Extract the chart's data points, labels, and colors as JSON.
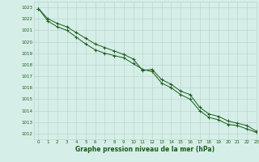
{
  "title": "",
  "xlabel": "Graphe pression niveau de la mer (hPa)",
  "ylabel": "",
  "bg_color": "#d6eee8",
  "grid_color": "#b8d8cc",
  "line_color": "#1a5c1a",
  "tick_color": "#1a5c1a",
  "xlim": [
    -0.5,
    23
  ],
  "ylim": [
    1011.5,
    1023.5
  ],
  "yticks": [
    1012,
    1013,
    1014,
    1015,
    1016,
    1017,
    1018,
    1019,
    1020,
    1021,
    1022,
    1023
  ],
  "xticks": [
    0,
    1,
    2,
    3,
    4,
    5,
    6,
    7,
    8,
    9,
    10,
    11,
    12,
    13,
    14,
    15,
    16,
    17,
    18,
    19,
    20,
    21,
    22,
    23
  ],
  "line1_x": [
    0,
    1,
    2,
    3,
    4,
    5,
    6,
    7,
    8,
    9,
    10,
    11,
    12,
    13,
    14,
    15,
    16,
    17,
    18,
    19,
    20,
    21,
    22,
    23
  ],
  "line1_y": [
    1022.9,
    1022.0,
    1021.6,
    1021.3,
    1020.8,
    1020.3,
    1019.8,
    1019.5,
    1019.2,
    1018.9,
    1018.5,
    1017.5,
    1017.6,
    1016.7,
    1016.3,
    1015.7,
    1015.4,
    1014.3,
    1013.7,
    1013.5,
    1013.1,
    1012.9,
    1012.7,
    1012.2
  ],
  "line2_x": [
    0,
    1,
    2,
    3,
    4,
    5,
    6,
    7,
    8,
    9,
    10,
    11,
    12,
    13,
    14,
    15,
    16,
    17,
    18,
    19,
    20,
    21,
    22,
    23
  ],
  "line2_y": [
    1022.9,
    1021.8,
    1021.3,
    1021.0,
    1020.4,
    1019.8,
    1019.3,
    1019.0,
    1018.8,
    1018.6,
    1018.1,
    1017.6,
    1017.4,
    1016.4,
    1016.0,
    1015.4,
    1015.0,
    1014.0,
    1013.4,
    1013.2,
    1012.8,
    1012.7,
    1012.4,
    1012.1
  ]
}
